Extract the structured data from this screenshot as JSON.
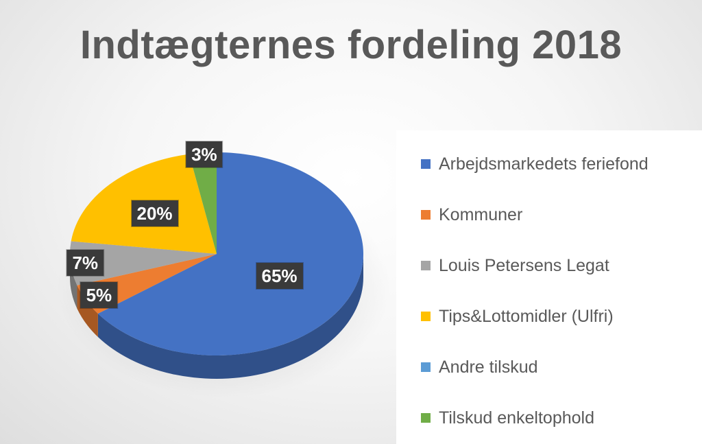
{
  "chart_data": {
    "type": "pie",
    "title": "Indtægternes fordeling 2018",
    "categories": [
      "Arbejdsmarkedets feriefond",
      "Kommuner",
      "Louis Petersens Legat",
      "Tips&Lottomidler (Ulfri)",
      "Andre tilskud",
      "Tilskud enkeltophold"
    ],
    "values": [
      65,
      5,
      7,
      20,
      0,
      3
    ],
    "labels": [
      "65%",
      "5%",
      "7%",
      "20%",
      "",
      "3%"
    ],
    "colors": [
      "#4472c4",
      "#ed7d31",
      "#a5a5a5",
      "#ffc000",
      "#5b9bd5",
      "#70ad47"
    ],
    "legend_position": "right",
    "style": "3d"
  }
}
